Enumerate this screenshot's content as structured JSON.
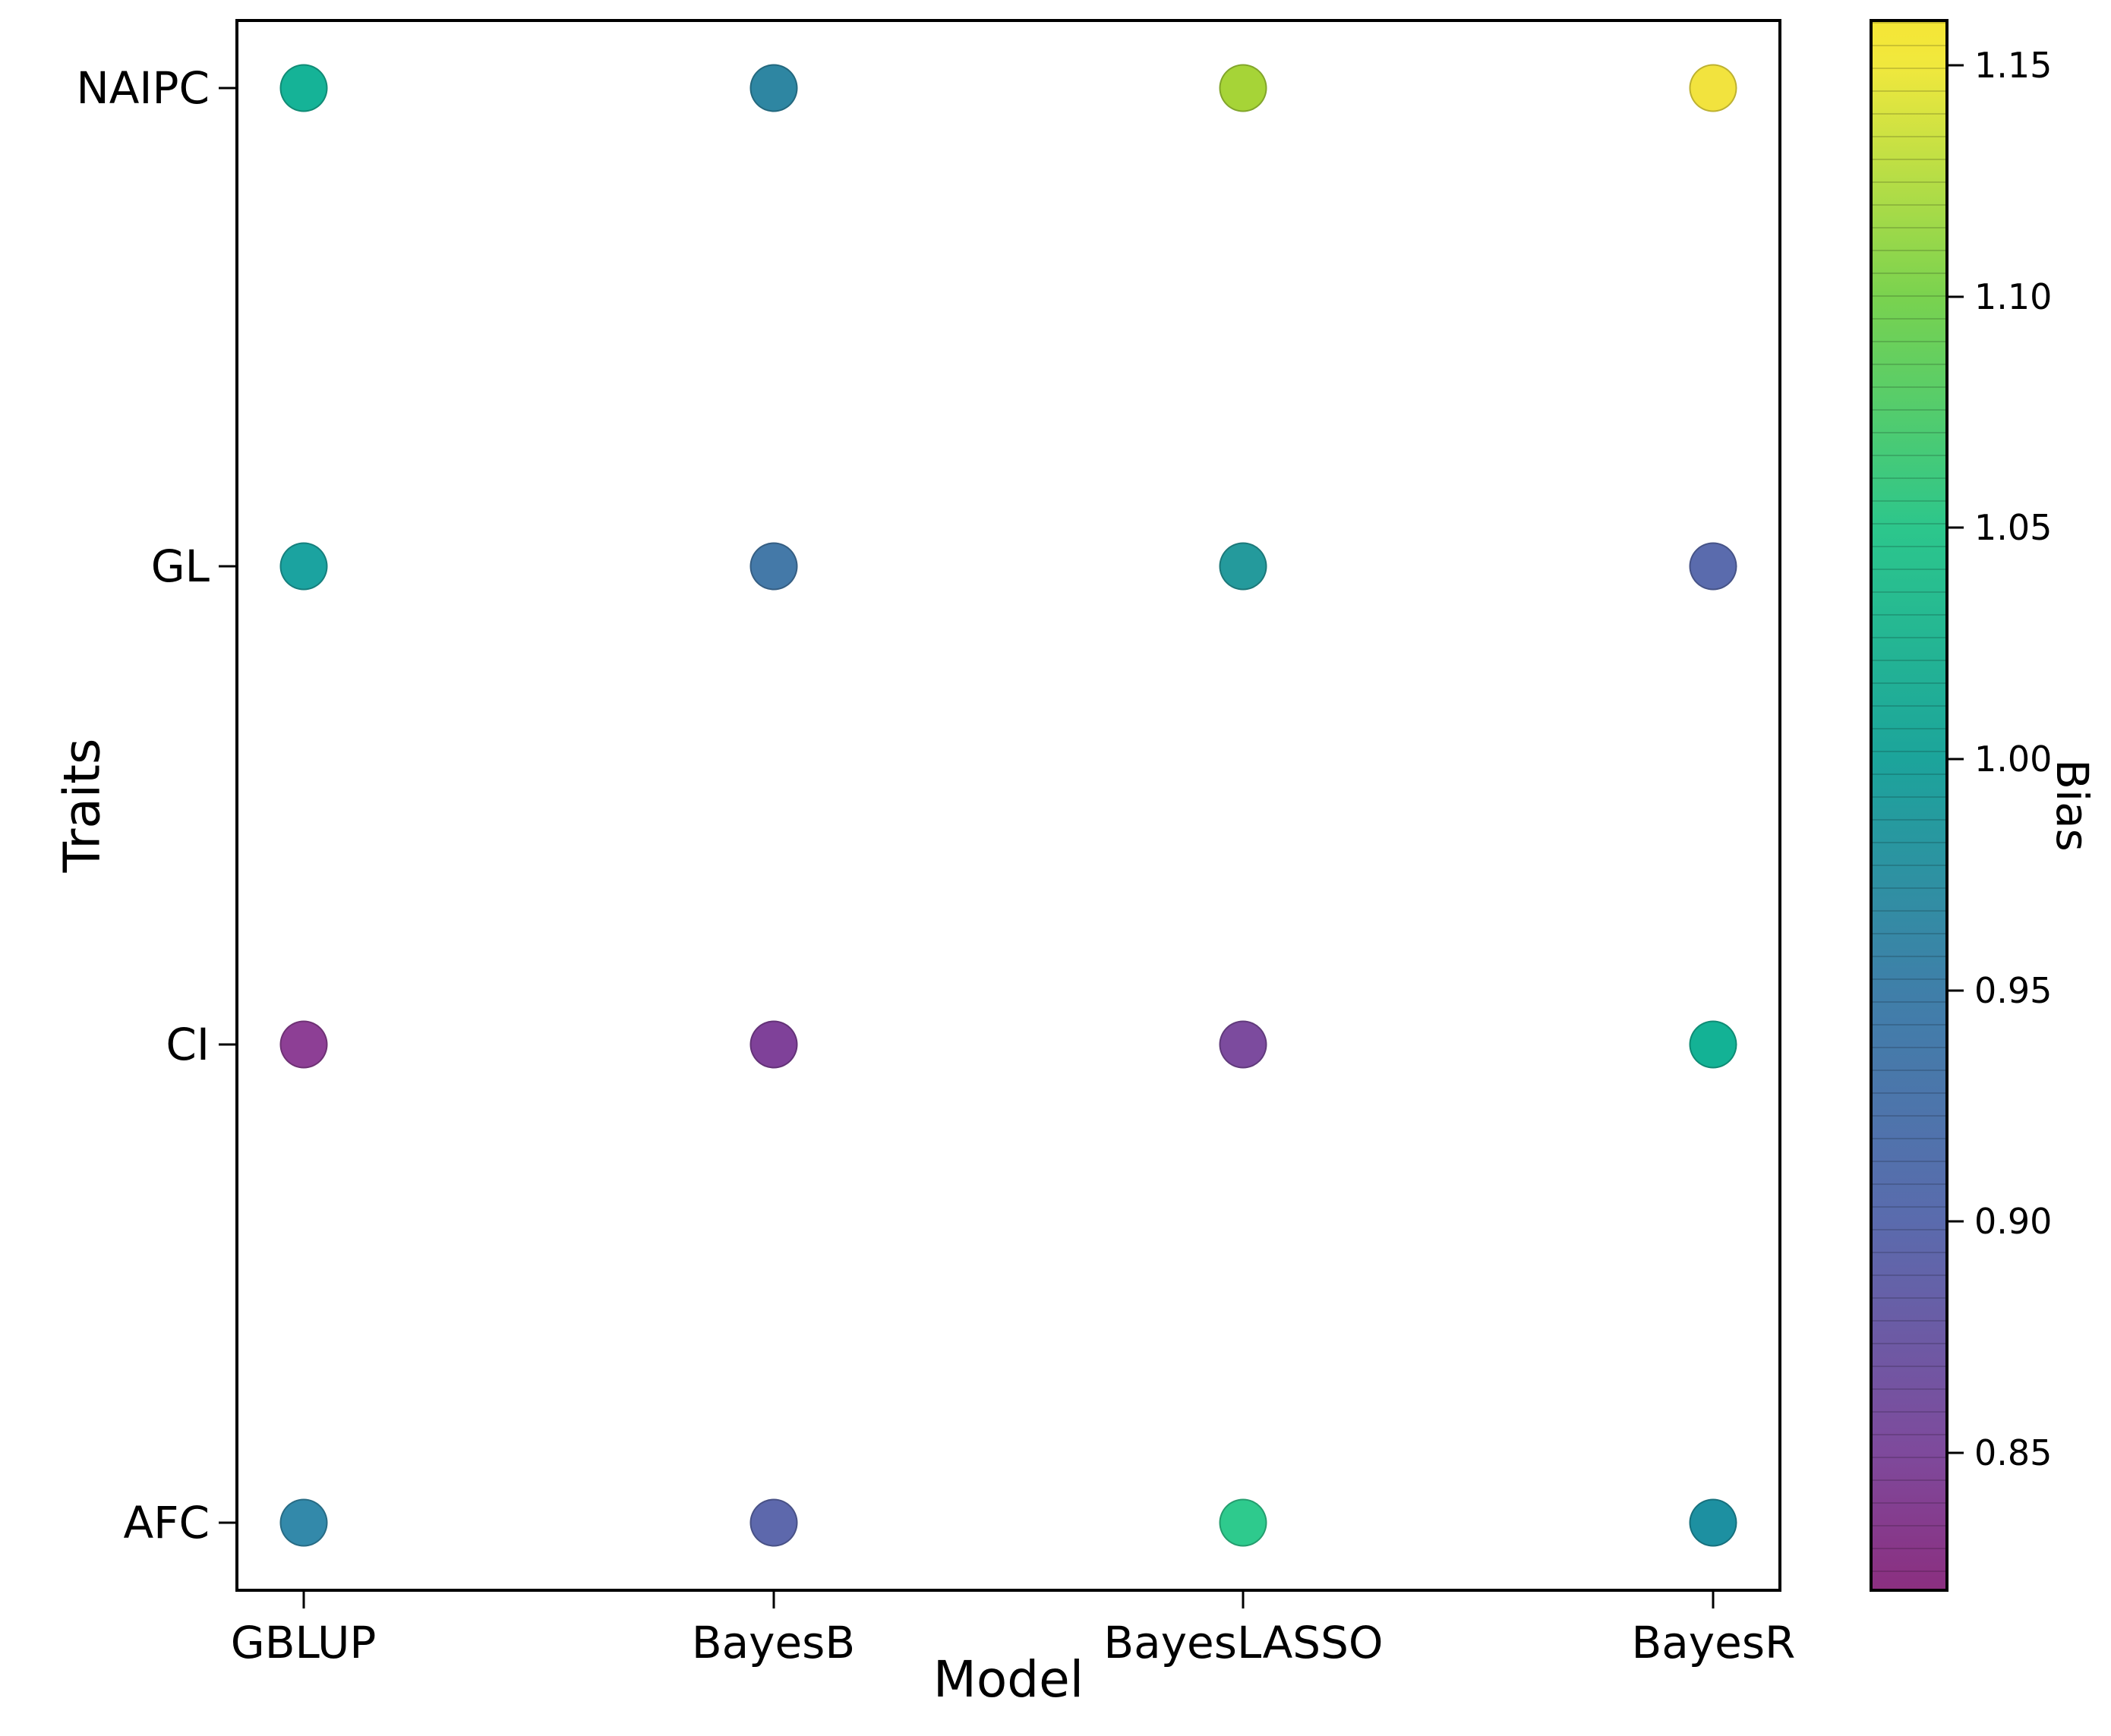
{
  "figure": {
    "background": "#ffffff"
  },
  "axes": {
    "x_label": "Model",
    "y_label": "Traits",
    "x_tick_labels": [
      "GBLUP",
      "BayesB",
      "BayesLASSO",
      "BayesR"
    ],
    "y_tick_labels_top_to_bottom": [
      "NAIPC",
      "GL",
      "CI",
      "AFC"
    ]
  },
  "colorbar": {
    "label": "Bias",
    "vmin": 0.82,
    "vmax": 1.16,
    "tick_labels": [
      "1.15",
      "1.10",
      "1.05",
      "1.00",
      "0.95",
      "0.90",
      "0.85"
    ],
    "tick_values": [
      1.15,
      1.1,
      1.05,
      1.0,
      0.95,
      0.9,
      0.85
    ],
    "gradient_stops": [
      {
        "value": 0.82,
        "color": "#8b2f80"
      },
      {
        "value": 0.85,
        "color": "#7e4a9c"
      },
      {
        "value": 0.9,
        "color": "#5a6bad"
      },
      {
        "value": 0.95,
        "color": "#3f7fa9"
      },
      {
        "value": 1.0,
        "color": "#1ca49b"
      },
      {
        "value": 1.05,
        "color": "#2cc68c"
      },
      {
        "value": 1.1,
        "color": "#79d24f"
      },
      {
        "value": 1.15,
        "color": "#f0e83d"
      },
      {
        "value": 1.16,
        "color": "#f5e636"
      }
    ]
  },
  "chart_data": {
    "type": "scatter",
    "title": "",
    "xlabel": "Model",
    "ylabel": "Traits",
    "color_label": "Bias",
    "colormap": "viridis-like (magenta-purple to yellow)",
    "colormap_range": [
      0.82,
      1.16
    ],
    "x_categories": [
      "GBLUP",
      "BayesB",
      "BayesLASSO",
      "BayesR"
    ],
    "y_categories_top_to_bottom": [
      "NAIPC",
      "GL",
      "CI",
      "AFC"
    ],
    "legend_position": "right-colorbar",
    "grid": false,
    "points": [
      {
        "trait": "NAIPC",
        "model": "GBLUP",
        "bias": 1.03,
        "color": "#15b397"
      },
      {
        "trait": "NAIPC",
        "model": "BayesB",
        "bias": 0.96,
        "color": "#2e86a2"
      },
      {
        "trait": "NAIPC",
        "model": "BayesLASSO",
        "bias": 1.12,
        "color": "#a6d437"
      },
      {
        "trait": "NAIPC",
        "model": "BayesR",
        "bias": 1.15,
        "color": "#f2e33e"
      },
      {
        "trait": "GL",
        "model": "GBLUP",
        "bias": 1.0,
        "color": "#1ba3a0"
      },
      {
        "trait": "GL",
        "model": "BayesB",
        "bias": 0.93,
        "color": "#4479a8"
      },
      {
        "trait": "GL",
        "model": "BayesLASSO",
        "bias": 0.99,
        "color": "#249a9c"
      },
      {
        "trait": "GL",
        "model": "BayesR",
        "bias": 0.9,
        "color": "#5a6bad"
      },
      {
        "trait": "CI",
        "model": "GBLUP",
        "bias": 0.83,
        "color": "#8d3f95"
      },
      {
        "trait": "CI",
        "model": "BayesB",
        "bias": 0.84,
        "color": "#7f4199"
      },
      {
        "trait": "CI",
        "model": "BayesLASSO",
        "bias": 0.85,
        "color": "#7c4b9e"
      },
      {
        "trait": "CI",
        "model": "BayesR",
        "bias": 1.03,
        "color": "#13b295"
      },
      {
        "trait": "AFC",
        "model": "GBLUP",
        "bias": 0.96,
        "color": "#3389aa"
      },
      {
        "trait": "AFC",
        "model": "BayesB",
        "bias": 0.89,
        "color": "#5d68ac"
      },
      {
        "trait": "AFC",
        "model": "BayesLASSO",
        "bias": 1.06,
        "color": "#2eca8d"
      },
      {
        "trait": "AFC",
        "model": "BayesR",
        "bias": 0.98,
        "color": "#1d90a1"
      }
    ]
  }
}
